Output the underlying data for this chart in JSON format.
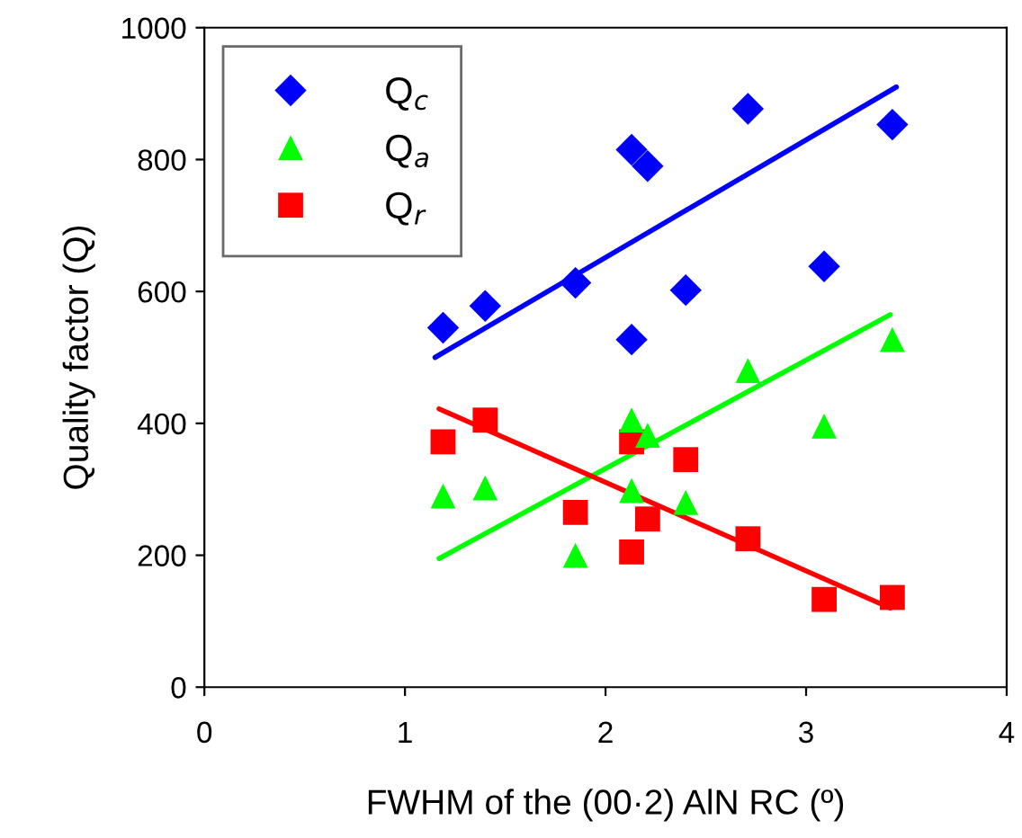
{
  "chart_data": {
    "type": "scatter",
    "xlabel": "FWHM of the (00·2) AlN RC (º)",
    "ylabel": "Quality factor (Q)",
    "xlim": [
      0,
      4
    ],
    "xticks": [
      0,
      1,
      2,
      3,
      4
    ],
    "ylim": [
      0,
      1000
    ],
    "yticks": [
      0,
      200,
      400,
      600,
      800,
      1000
    ],
    "grid": false,
    "legend": "top left",
    "series": [
      {
        "name": "Q$_{c}$",
        "color": "#0000ff",
        "marker": "diamond",
        "x": [
          1.19,
          1.4,
          1.85,
          2.13,
          2.21,
          2.13,
          2.4,
          2.71,
          3.09,
          3.43
        ],
        "values": [
          545,
          578,
          613,
          815,
          790,
          527,
          602,
          877,
          638,
          853
        ]
      },
      {
        "name": "Q$_{a}$",
        "color": "#00ff00",
        "marker": "triangle",
        "x": [
          1.19,
          1.4,
          1.85,
          2.13,
          2.21,
          2.13,
          2.4,
          2.71,
          3.09,
          3.43
        ],
        "values": [
          290,
          302,
          200,
          405,
          382,
          298,
          280,
          480,
          396,
          527
        ]
      },
      {
        "name": "Q$_{r}$",
        "color": "#ff0000",
        "marker": "square",
        "x": [
          1.19,
          1.4,
          1.85,
          2.13,
          2.13,
          2.21,
          2.4,
          2.71,
          3.09,
          3.43
        ],
        "values": [
          372,
          405,
          265,
          205,
          372,
          255,
          345,
          225,
          133,
          136
        ]
      },
      {
        "type": "line",
        "color": "#0000ff",
        "marker": "none",
        "x": [
          1.15,
          3.45
        ],
        "values": [
          500,
          910
        ]
      },
      {
        "type": "line",
        "color": "#00ff00",
        "marker": "none",
        "x": [
          1.17,
          3.42
        ],
        "values": [
          195,
          565
        ]
      },
      {
        "type": "line",
        "color": "#ff0000",
        "marker": "none",
        "x": [
          1.17,
          3.42
        ],
        "values": [
          422,
          120
        ]
      }
    ]
  }
}
